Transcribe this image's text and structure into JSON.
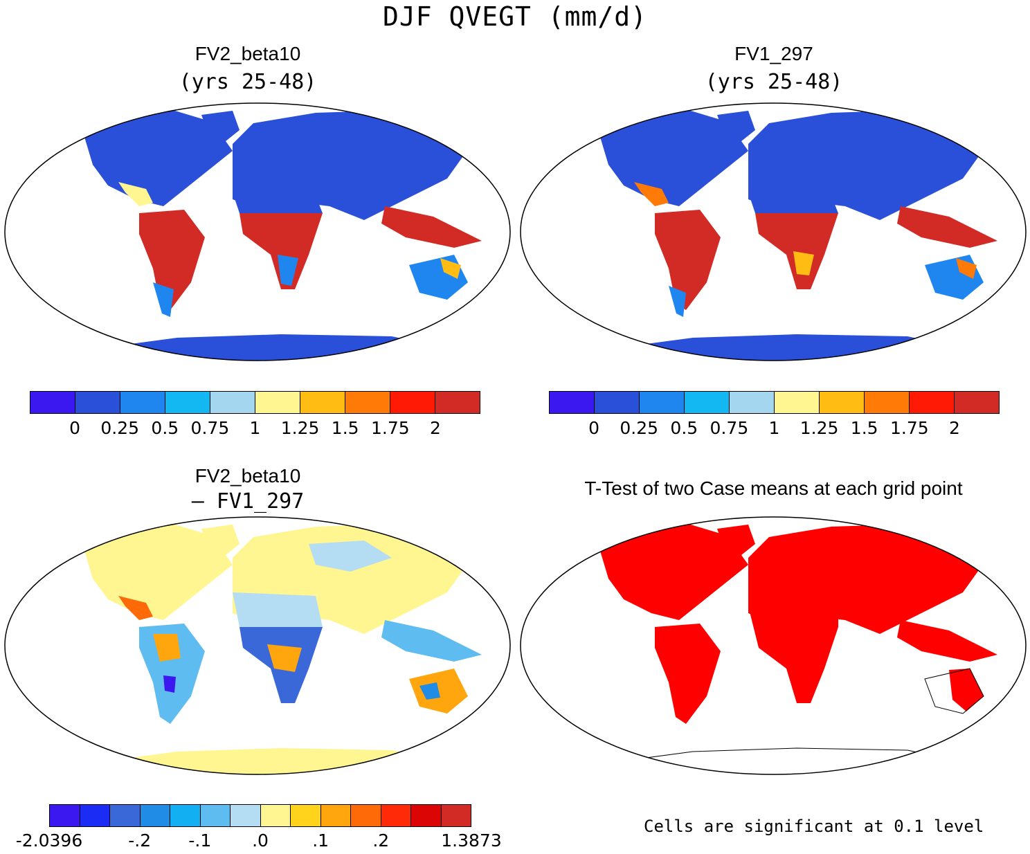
{
  "figure": {
    "title": "DJF QVEGT (mm/d)"
  },
  "panels": [
    {
      "title": "FV2_beta10",
      "subtitle": "(yrs 25-48)",
      "colorbar": {
        "colors": [
          "#3b17f0",
          "#2a4fd8",
          "#1f86f0",
          "#13b8f2",
          "#a4d6ef",
          "#fff591",
          "#ffbd14",
          "#ff7a06",
          "#ff1a06",
          "#d22b26"
        ],
        "tick_labels": [
          "0",
          "0.25",
          "0.5",
          "0.75",
          "1",
          "1.25",
          "1.5",
          "1.75",
          "2"
        ]
      }
    },
    {
      "title": "FV1_297",
      "subtitle": "(yrs 25-48)",
      "colorbar": {
        "colors": [
          "#3b17f0",
          "#2a4fd8",
          "#1f86f0",
          "#13b8f2",
          "#a4d6ef",
          "#fff591",
          "#ffbd14",
          "#ff7a06",
          "#ff1a06",
          "#d22b26"
        ],
        "tick_labels": [
          "0",
          "0.25",
          "0.5",
          "0.75",
          "1",
          "1.25",
          "1.5",
          "1.75",
          "2"
        ]
      }
    },
    {
      "title": "FV2_beta10",
      "subtitle": "– FV1_297",
      "colorbar": {
        "colors": [
          "#3b17f0",
          "#1b2cf5",
          "#3b68d9",
          "#218ce6",
          "#12b0f3",
          "#5fbcf0",
          "#b4dcf2",
          "#fff591",
          "#ffd31c",
          "#ffa60e",
          "#ff6a08",
          "#ff2a08",
          "#dc0505",
          "#d22b26"
        ],
        "tick_labels": [
          "-2.0396",
          "-.2",
          "-.1",
          ".0",
          ".1",
          ".2",
          "1.3873"
        ]
      }
    },
    {
      "title": "T-Test of two Case means at each grid point",
      "note": "Cells are significant at 0.1 level",
      "significant_color": "#ff0000"
    }
  ]
}
